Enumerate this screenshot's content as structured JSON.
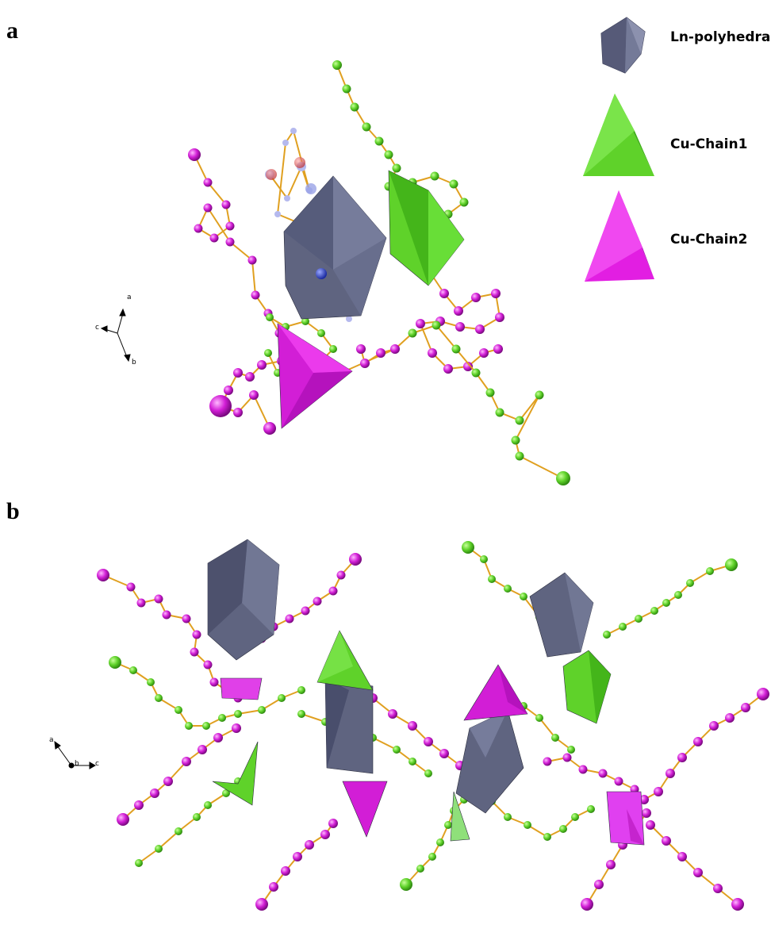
{
  "panels": [
    {
      "label": "a"
    },
    {
      "label": "b"
    }
  ],
  "legend": [
    {
      "label": "Ln-polyhedra",
      "color": "#5f6480"
    },
    {
      "label": "Cu-Chain1",
      "color": "#4fd42a"
    },
    {
      "label": "Cu-Chain2",
      "color": "#e21ee2"
    }
  ],
  "axes_a": {
    "a": "a",
    "b": "b",
    "c": "c"
  },
  "axes_b": {
    "a": "a",
    "b": "b",
    "c": "c"
  },
  "colors": {
    "bond": "#e0a020",
    "chain1_atom": "#66dd2a",
    "chain2_atom": "#d522d8",
    "ln_poly": "#5f6480",
    "ln_poly_dark": "#3a3d55",
    "nitrogen": "#2030c0",
    "oxygen": "#d04040"
  }
}
